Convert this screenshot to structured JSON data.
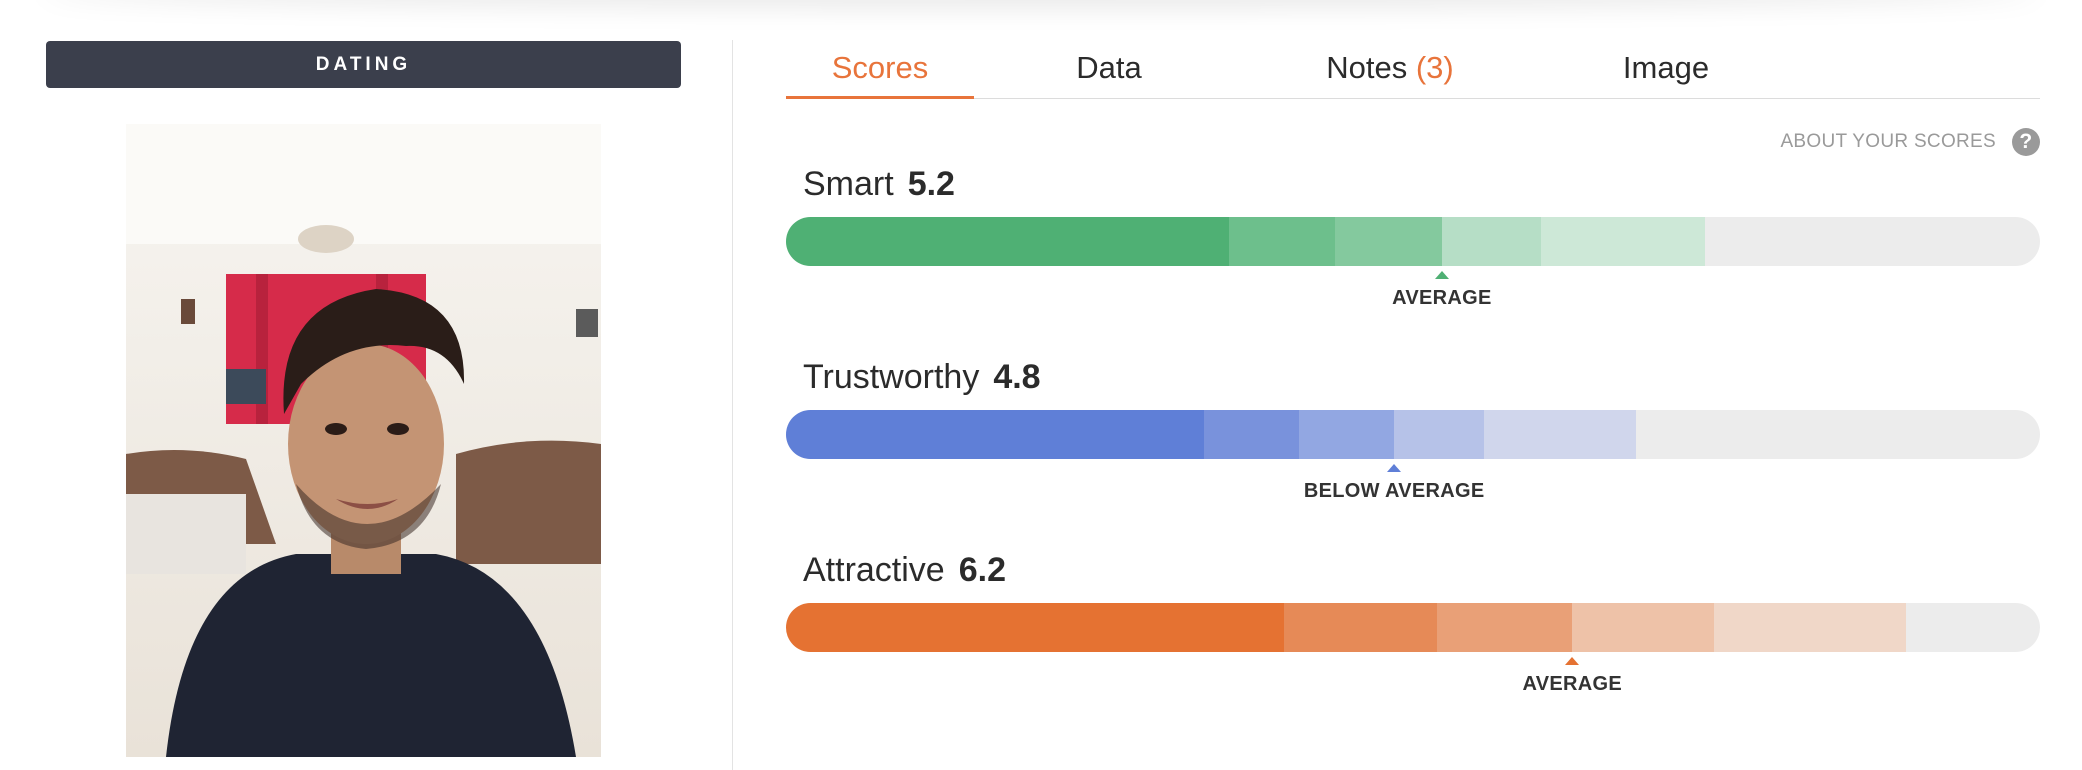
{
  "category": "DATING",
  "tabs": [
    {
      "label": "Scores",
      "count": ""
    },
    {
      "label": "Data",
      "count": ""
    },
    {
      "label": "Notes",
      "count": "(3)"
    },
    {
      "label": "Image",
      "count": ""
    }
  ],
  "about_link": "ABOUT YOUR SCORES",
  "help_icon": "?",
  "scores": [
    {
      "label": "Smart",
      "value": "5.2",
      "rating": "AVERAGE",
      "colors": [
        "#4fb074",
        "#6dbf8c",
        "#84c99e",
        "#b6dec6",
        "#cde8d7"
      ],
      "segment_ends": [
        0.353,
        0.438,
        0.523,
        0.602,
        0.733
      ],
      "marker": 0.523
    },
    {
      "label": "Trustworthy",
      "value": "4.8",
      "rating": "BELOW AVERAGE",
      "colors": [
        "#5f7fd7",
        "#7992dc",
        "#92a7e2",
        "#b6c2e8",
        "#d0d6ec"
      ],
      "segment_ends": [
        0.333,
        0.409,
        0.485,
        0.557,
        0.678
      ],
      "marker": 0.485
    },
    {
      "label": "Attractive",
      "value": "6.2",
      "rating": "AVERAGE",
      "colors": [
        "#e57232",
        "#e68a57",
        "#e9a077",
        "#eec2a8",
        "#f0d7c8"
      ],
      "segment_ends": [
        0.397,
        0.519,
        0.627,
        0.74,
        0.893
      ],
      "marker": 0.627
    }
  ]
}
